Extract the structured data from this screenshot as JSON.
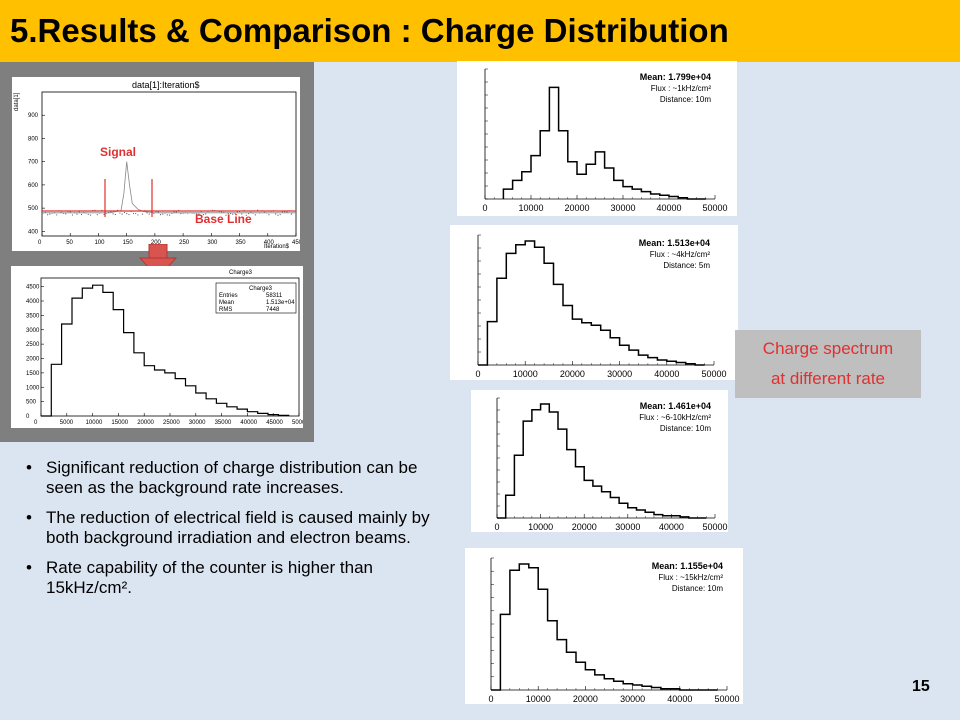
{
  "title": "5.Results & Comparison : Charge Distribution",
  "waveform": {
    "plot_title": "data[1]:Iteration$",
    "ylabel": "data[1]",
    "xlabel": "Iteration$",
    "signal_label": "Signal",
    "baseline_label": "Base Line",
    "x_ticks": [
      "0",
      "50",
      "100",
      "150",
      "200",
      "250",
      "300",
      "350",
      "400",
      "450"
    ],
    "y_ticks": [
      "400",
      "500",
      "600",
      "700",
      "800",
      "900"
    ]
  },
  "charge_hist": {
    "plot_title": "Charge3",
    "stats": [
      {
        "key": "Entries",
        "value": "58311"
      },
      {
        "key": "Mean",
        "value": "1.513e+04"
      },
      {
        "key": "RMS",
        "value": "7448"
      }
    ],
    "x_ticks": [
      "0",
      "5000",
      "10000",
      "15000",
      "20000",
      "25000",
      "30000",
      "35000",
      "40000",
      "45000",
      "50000"
    ],
    "y_ticks": [
      "0",
      "500",
      "1000",
      "1500",
      "2000",
      "2500",
      "3000",
      "3500",
      "4000",
      "4500"
    ]
  },
  "spectra": [
    {
      "mean": "Mean: 1.799e+04",
      "flux": "Flux : ~1kHz/cm²",
      "distance": "Distance: 10m"
    },
    {
      "mean": "Mean: 1.513e+04",
      "flux": "Flux : ~4kHz/cm²",
      "distance": "Distance: 5m"
    },
    {
      "mean": "Mean: 1.461e+04",
      "flux": "Flux : ~6-10kHz/cm²",
      "distance": "Distance: 10m"
    },
    {
      "mean": "Mean: 1.155e+04",
      "flux": "Flux : ~15kHz/cm²",
      "distance": "Distance: 10m"
    }
  ],
  "spectra_x_ticks": [
    "0",
    "10000",
    "20000",
    "30000",
    "40000",
    "50000"
  ],
  "callout": {
    "line1": "Charge spectrum",
    "line2": "at different rate"
  },
  "bullets": [
    "Significant reduction of charge distribution can be seen as the background rate increases.",
    " The reduction of electrical field is caused mainly by both background irradiation and electron beams.",
    "Rate capability of the counter is higher than 15kHz/cm²."
  ],
  "page_number": "15",
  "chart_data": [
    {
      "type": "line",
      "title": "data[1]:Iteration$",
      "xlabel": "Iteration$",
      "ylabel": "data[1]",
      "xlim": [
        0,
        450
      ],
      "ylim": [
        380,
        1000
      ],
      "x": [
        0,
        100,
        120,
        140,
        145,
        150,
        155,
        160,
        170,
        180,
        200,
        220,
        260,
        300,
        350,
        400,
        450
      ],
      "values": [
        480,
        480,
        480,
        490,
        560,
        700,
        600,
        520,
        495,
        485,
        480,
        480,
        480,
        480,
        480,
        480,
        480
      ]
    },
    {
      "type": "bar",
      "title": "Charge3",
      "xlim": [
        0,
        50000
      ],
      "ylim": [
        0,
        4800
      ],
      "x": [
        1000,
        3000,
        5000,
        7000,
        9000,
        11000,
        13000,
        15000,
        17000,
        19000,
        21000,
        23000,
        25000,
        27000,
        29000,
        31000,
        33000,
        35000,
        37000,
        39000,
        41000,
        43000,
        45000,
        47000
      ],
      "values": [
        0,
        1800,
        3200,
        4100,
        4450,
        4550,
        4300,
        3700,
        2900,
        2200,
        1750,
        1600,
        1500,
        1300,
        1050,
        800,
        600,
        440,
        320,
        240,
        150,
        90,
        50,
        20
      ]
    },
    {
      "type": "bar",
      "title": "",
      "xlim": [
        0,
        50000
      ],
      "x": [
        5000,
        7000,
        9000,
        11000,
        13000,
        15000,
        17000,
        19000,
        21000,
        23000,
        25000,
        27000,
        29000,
        31000,
        33000,
        35000,
        37000,
        39000,
        41000,
        43000,
        45000,
        47000
      ],
      "values": [
        0.08,
        0.15,
        0.22,
        0.35,
        0.55,
        0.9,
        0.55,
        0.3,
        0.2,
        0.28,
        0.38,
        0.25,
        0.15,
        0.1,
        0.08,
        0.06,
        0.04,
        0.03,
        0.02,
        0.01,
        0.0,
        0.0
      ]
    },
    {
      "type": "bar",
      "title": "",
      "xlim": [
        0,
        50000
      ],
      "x": [
        1000,
        3000,
        5000,
        7000,
        9000,
        11000,
        13000,
        15000,
        17000,
        19000,
        21000,
        23000,
        25000,
        27000,
        29000,
        31000,
        33000,
        35000,
        37000,
        39000,
        41000,
        43000,
        45000,
        47000
      ],
      "values": [
        0.0,
        0.35,
        0.7,
        0.9,
        0.97,
        1.0,
        0.95,
        0.82,
        0.65,
        0.48,
        0.37,
        0.34,
        0.32,
        0.28,
        0.22,
        0.16,
        0.12,
        0.08,
        0.06,
        0.04,
        0.03,
        0.02,
        0.01,
        0.0
      ]
    },
    {
      "type": "bar",
      "title": "",
      "xlim": [
        0,
        50000
      ],
      "x": [
        1000,
        3000,
        5000,
        7000,
        9000,
        11000,
        13000,
        15000,
        17000,
        19000,
        21000,
        23000,
        25000,
        27000,
        29000,
        31000,
        33000,
        35000,
        37000,
        39000,
        41000,
        43000,
        45000,
        47000
      ],
      "values": [
        0.0,
        0.2,
        0.55,
        0.85,
        0.95,
        1.0,
        0.93,
        0.78,
        0.6,
        0.45,
        0.33,
        0.28,
        0.23,
        0.18,
        0.13,
        0.09,
        0.07,
        0.05,
        0.03,
        0.02,
        0.02,
        0.01,
        0.0,
        0.0
      ]
    },
    {
      "type": "bar",
      "title": "",
      "xlim": [
        0,
        50000
      ],
      "x": [
        1000,
        3000,
        5000,
        7000,
        9000,
        11000,
        13000,
        15000,
        17000,
        19000,
        21000,
        23000,
        25000,
        27000,
        29000,
        31000,
        33000,
        35000,
        37000,
        39000,
        41000,
        43000,
        45000,
        47000
      ],
      "values": [
        0.0,
        0.6,
        0.95,
        1.0,
        0.97,
        0.8,
        0.55,
        0.4,
        0.3,
        0.22,
        0.16,
        0.12,
        0.09,
        0.07,
        0.05,
        0.04,
        0.03,
        0.02,
        0.01,
        0.01,
        0.0,
        0.0,
        0.0,
        0.0
      ]
    }
  ]
}
